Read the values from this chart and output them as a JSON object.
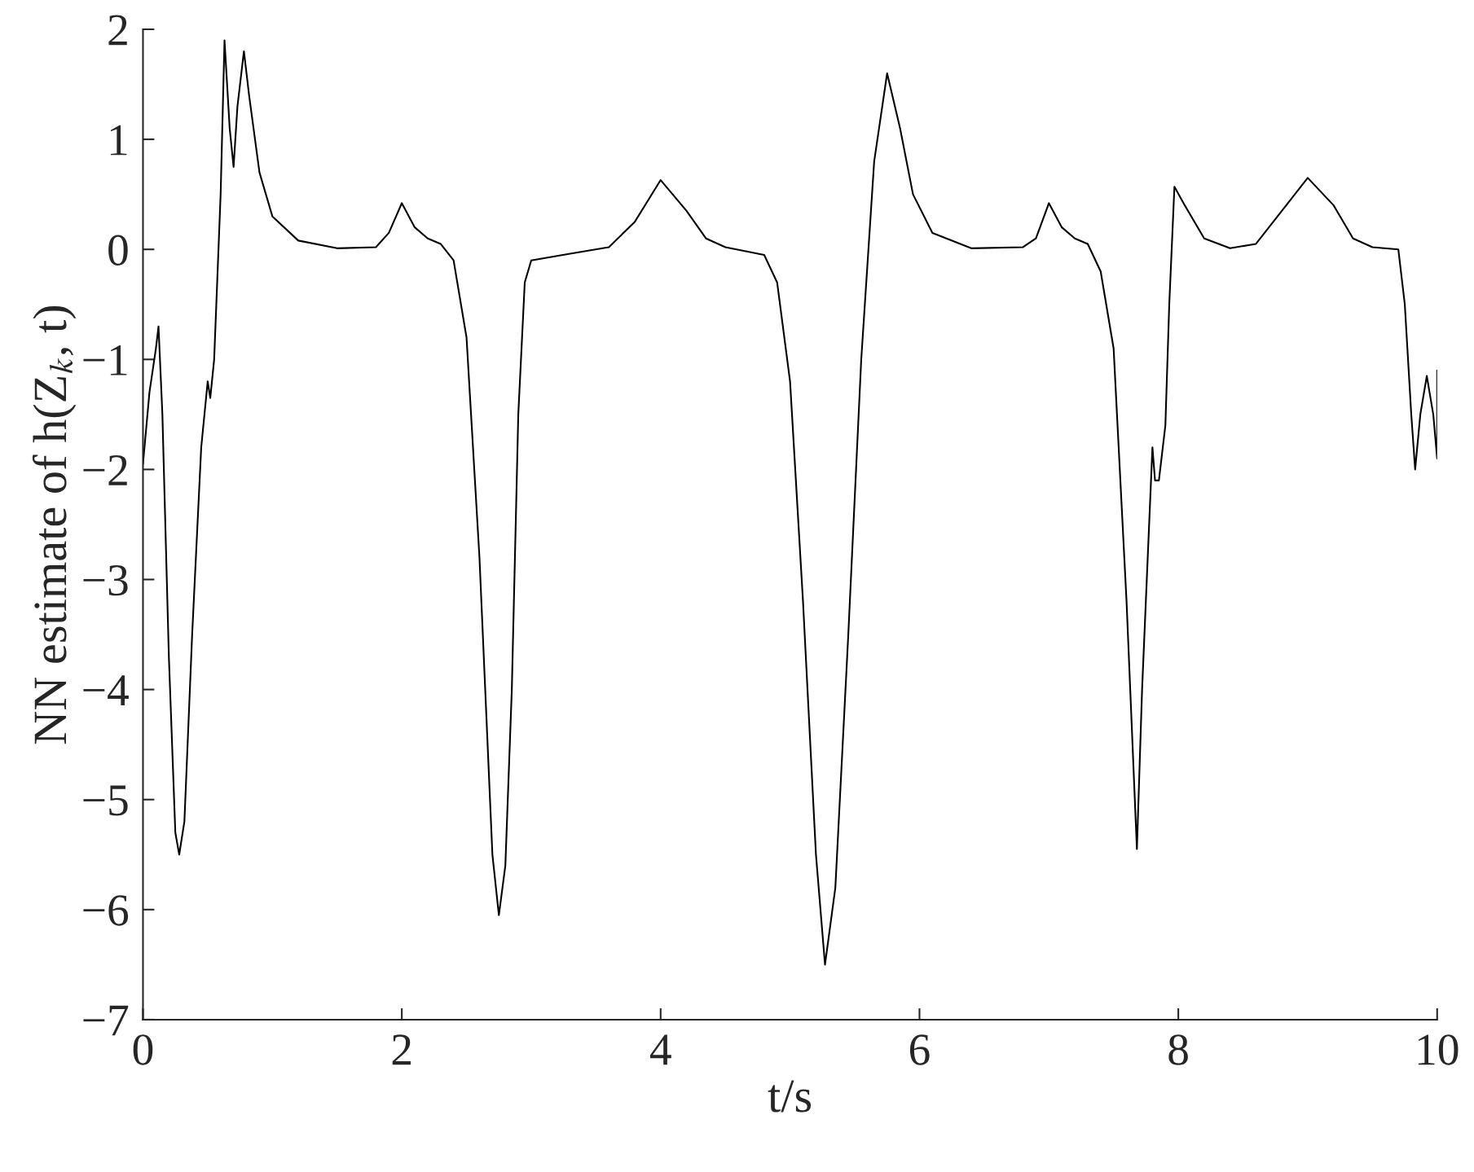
{
  "chart_data": {
    "type": "line",
    "xlabel": "t/s",
    "ylabel": "NN estimate of h(Z$_{k}$, t)",
    "xlim": [
      0,
      10
    ],
    "ylim": [
      -7,
      2
    ],
    "xticks": [
      0,
      2,
      4,
      6,
      8,
      10
    ],
    "yticks": [
      -7,
      -6,
      -5,
      -4,
      -3,
      -2,
      -1,
      0,
      1,
      2
    ],
    "grid": false,
    "legend": false,
    "series": [
      {
        "color": "#000000",
        "x": [
          0,
          0.05,
          0.1,
          0.12,
          0.15,
          0.2,
          0.25,
          0.28,
          0.32,
          0.38,
          0.45,
          0.5,
          0.52,
          0.55,
          0.6,
          0.63,
          0.67,
          0.7,
          0.73,
          0.78,
          0.82,
          0.9,
          1.0,
          1.2,
          1.5,
          1.8,
          1.9,
          2.0,
          2.1,
          2.2,
          2.3,
          2.4,
          2.5,
          2.6,
          2.7,
          2.75,
          2.8,
          2.85,
          2.9,
          2.95,
          3.0,
          3.3,
          3.6,
          3.8,
          4.0,
          4.2,
          4.35,
          4.5,
          4.8,
          4.9,
          5.0,
          5.1,
          5.2,
          5.27,
          5.35,
          5.45,
          5.55,
          5.65,
          5.75,
          5.85,
          5.95,
          6.1,
          6.4,
          6.8,
          6.9,
          7.0,
          7.1,
          7.2,
          7.3,
          7.4,
          7.5,
          7.6,
          7.68,
          7.72,
          7.8,
          7.82,
          7.85,
          7.9,
          7.93,
          7.97,
          8.05,
          8.2,
          8.4,
          8.6,
          8.8,
          9.0,
          9.2,
          9.35,
          9.5,
          9.7,
          9.75,
          9.8,
          9.83,
          9.87,
          9.92,
          9.97,
          10.0,
          10.0
        ],
        "values": [
          -1.95,
          -1.3,
          -0.9,
          -0.7,
          -1.5,
          -3.7,
          -5.3,
          -5.5,
          -5.2,
          -3.5,
          -1.8,
          -1.2,
          -1.35,
          -1.0,
          0.5,
          1.9,
          1.1,
          0.75,
          1.3,
          1.8,
          1.4,
          0.7,
          0.3,
          0.08,
          0.01,
          0.02,
          0.15,
          0.42,
          0.2,
          0.1,
          0.05,
          -0.1,
          -0.8,
          -2.8,
          -5.5,
          -6.05,
          -5.6,
          -4.0,
          -1.5,
          -0.3,
          -0.1,
          -0.04,
          0.02,
          0.25,
          0.63,
          0.35,
          0.1,
          0.02,
          -0.05,
          -0.3,
          -1.2,
          -3.2,
          -5.5,
          -6.5,
          -5.8,
          -3.5,
          -1.0,
          0.8,
          1.6,
          1.1,
          0.5,
          0.15,
          0.01,
          0.02,
          0.1,
          0.42,
          0.2,
          0.1,
          0.05,
          -0.2,
          -0.9,
          -3.2,
          -5.45,
          -4.0,
          -1.8,
          -2.1,
          -2.1,
          -1.6,
          -0.5,
          0.57,
          0.4,
          0.1,
          0.01,
          0.05,
          0.35,
          0.65,
          0.4,
          0.1,
          0.02,
          0.0,
          -0.5,
          -1.5,
          -2.0,
          -1.5,
          -1.15,
          -1.5,
          -1.9,
          -1.1
        ]
      }
    ]
  }
}
